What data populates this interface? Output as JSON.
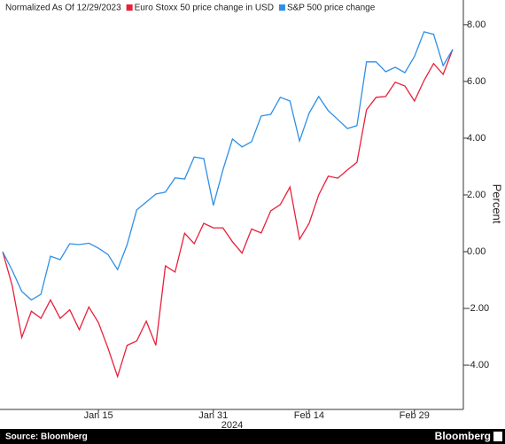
{
  "chart_data": {
    "type": "line",
    "legend_title": "Normalized As Of 12/29/2023",
    "y_label": "Percent",
    "x_super_label": "2024",
    "source": "Source: Bloomberg",
    "brand": "Bloomberg",
    "legend_position": "upper left",
    "categories": [
      null,
      null,
      null,
      null,
      null,
      null,
      null,
      null,
      null,
      null,
      "Jan 15",
      null,
      null,
      null,
      null,
      null,
      null,
      null,
      null,
      null,
      null,
      null,
      "Jan 31",
      null,
      null,
      null,
      null,
      null,
      null,
      null,
      null,
      null,
      "Feb 14",
      null,
      null,
      null,
      null,
      null,
      null,
      null,
      null,
      null,
      null,
      "Feb 29",
      null,
      null,
      null,
      null
    ],
    "series": [
      {
        "name": "Euro Stoxx 50 price change in USD",
        "color": "#e8203a",
        "values": [
          0,
          -1.2,
          -3.02,
          -2.1,
          -2.35,
          -1.7,
          -2.35,
          -2.05,
          -2.75,
          -1.95,
          -2.5,
          -3.4,
          -4.4,
          -3.3,
          -3.15,
          -2.45,
          -3.3,
          -0.5,
          -0.72,
          0.65,
          0.28,
          1.0,
          0.84,
          0.84,
          0.35,
          -0.05,
          0.8,
          0.66,
          1.44,
          1.66,
          2.28,
          0.44,
          1.0,
          2.0,
          2.66,
          2.59,
          2.88,
          3.15,
          5.0,
          5.44,
          5.47,
          5.97,
          5.84,
          5.31,
          6.03,
          6.63,
          6.25,
          7.13
        ]
      },
      {
        "name": "S&P 500 price change",
        "color": "#2f8fe6",
        "values": [
          0,
          -0.66,
          -1.4,
          -1.7,
          -1.5,
          -0.16,
          -0.28,
          0.28,
          0.25,
          0.3,
          0.12,
          -0.1,
          -0.63,
          0.25,
          1.47,
          1.75,
          2.03,
          2.1,
          2.6,
          2.56,
          3.34,
          3.28,
          1.63,
          2.88,
          3.97,
          3.69,
          3.88,
          4.78,
          4.84,
          5.44,
          5.31,
          3.9,
          4.88,
          5.47,
          4.97,
          4.66,
          4.34,
          4.44,
          6.69,
          6.69,
          6.34,
          6.5,
          6.31,
          6.88,
          7.75,
          7.66,
          6.56,
          7.13
        ]
      }
    ],
    "ylim": [
      -5.56,
      8.87
    ],
    "yticks": [
      {
        "value": -4,
        "label": "-4.00"
      },
      {
        "value": -2,
        "label": "-2.00"
      },
      {
        "value": 0,
        "label": "0.00"
      },
      {
        "value": 2,
        "label": "2.00"
      },
      {
        "value": 4,
        "label": "4.00"
      },
      {
        "value": 6,
        "label": "6.00"
      },
      {
        "value": 8,
        "label": "8.00"
      }
    ],
    "grid": false
  }
}
